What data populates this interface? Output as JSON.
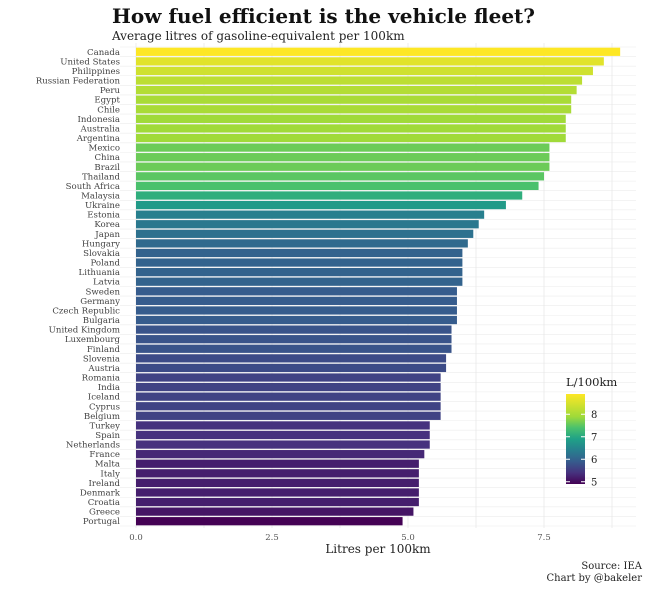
{
  "title": "How fuel efficient is the vehicle fleet?",
  "subtitle": "Average litres of gasoline-equivalent per 100km",
  "caption_source": "Source: IEA",
  "caption_credit": "Chart by @bakeler",
  "chart_data": {
    "type": "bar",
    "orientation": "horizontal",
    "categories": [
      "Canada",
      "United States",
      "Philippines",
      "Russian Federation",
      "Peru",
      "Egypt",
      "Chile",
      "Indonesia",
      "Australia",
      "Argentina",
      "Mexico",
      "China",
      "Brazil",
      "Thailand",
      "South Africa",
      "Malaysia",
      "Ukraine",
      "Estonia",
      "Korea",
      "Japan",
      "Hungary",
      "Slovakia",
      "Poland",
      "Lithuania",
      "Latvia",
      "Sweden",
      "Germany",
      "Czech Republic",
      "Bulgaria",
      "United Kingdom",
      "Luxembourg",
      "Finland",
      "Slovenia",
      "Austria",
      "Romania",
      "India",
      "Iceland",
      "Cyprus",
      "Belgium",
      "Turkey",
      "Spain",
      "Netherlands",
      "France",
      "Malta",
      "Italy",
      "Ireland",
      "Denmark",
      "Croatia",
      "Greece",
      "Portugal"
    ],
    "values": [
      8.9,
      8.6,
      8.4,
      8.2,
      8.1,
      8.0,
      8.0,
      7.9,
      7.9,
      7.9,
      7.6,
      7.6,
      7.6,
      7.5,
      7.4,
      7.1,
      6.8,
      6.4,
      6.3,
      6.2,
      6.1,
      6.0,
      6.0,
      6.0,
      6.0,
      5.9,
      5.9,
      5.9,
      5.9,
      5.8,
      5.8,
      5.8,
      5.7,
      5.7,
      5.6,
      5.6,
      5.6,
      5.6,
      5.6,
      5.4,
      5.4,
      5.4,
      5.3,
      5.2,
      5.2,
      5.2,
      5.2,
      5.2,
      5.1,
      4.9
    ],
    "xlabel": "Litres per 100km",
    "ylabel": "",
    "xlim": [
      0,
      9
    ],
    "x_ticks": [
      0,
      2.5,
      5,
      7.5
    ],
    "x_tick_labels": [
      "0.0",
      "2.5",
      "5.0",
      "7.5"
    ],
    "grid": true,
    "color_scale": "viridis",
    "color_range": [
      4.9,
      8.9
    ],
    "legend": {
      "title": "L/100km",
      "placement": "right",
      "ticks": [
        5,
        6,
        7,
        8
      ],
      "tick_labels": [
        "5",
        "6",
        "7",
        "8"
      ]
    }
  }
}
